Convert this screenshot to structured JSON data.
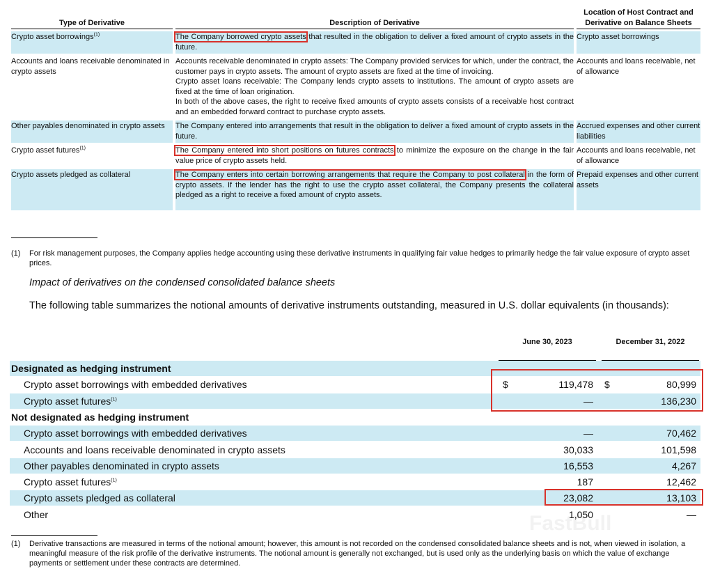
{
  "derivatives_table": {
    "headers": [
      "Type of Derivative",
      "Description of Derivative",
      "Location of Host Contract and Derivative on Balance Sheets"
    ],
    "rows": [
      {
        "type": "Crypto asset borrowings",
        "type_note": "(1)",
        "description": [
          "The Company borrowed crypto assets",
          " that resulted in the obligation to deliver a fixed amount of crypto assets in the future."
        ],
        "location": "Crypto asset borrowings"
      },
      {
        "type": "Accounts and loans receivable denominated in crypto assets",
        "description": [
          "Accounts receivable denominated in crypto assets: The Company provided services for which, under the contract, the customer pays in crypto assets. The amount of crypto assets are fixed at the time of invoicing.",
          "Crypto asset loans receivable: The Company lends crypto assets to institutions. The amount of crypto assets are fixed at the time of loan origination.",
          "In both of the above cases, the right to receive fixed amounts of crypto assets consists of a receivable host contract and an embedded forward contract to purchase crypto assets."
        ],
        "location": "Accounts and loans receivable, net of allowance"
      },
      {
        "type": "Other payables denominated in crypto assets",
        "description": [
          "The Company entered into arrangements that result in the obligation to deliver a fixed amount of crypto assets in the future."
        ],
        "location": "Accrued expenses and other current liabilities"
      },
      {
        "type": "Crypto asset futures",
        "type_note": "(1)",
        "description": [
          "The Company entered into short positions on futures contracts",
          " to minimize the exposure on the change in the fair value price of crypto assets held."
        ],
        "location": "Accounts and loans receivable, net of allowance"
      },
      {
        "type": "Crypto assets pledged as collateral",
        "description": [
          "The Company enters into certain borrowing arrangements that require the Company to post collateral",
          " in the form of crypto assets. If the lender has the right to use the crypto asset collateral, the Company presents the collateral pledged as a right to receive a fixed amount of crypto assets."
        ],
        "location": "Prepaid expenses and other current assets"
      }
    ]
  },
  "footnote_1": {
    "marker": "(1)",
    "text": "For risk management purposes, the Company applies hedge accounting using these derivative instruments in qualifying fair value hedges to primarily hedge the fair value exposure of crypto asset prices."
  },
  "heading": "Impact of derivatives on the condensed consolidated balance sheets",
  "intro": "The following table summarizes the notional amounts of derivative instruments outstanding, measured in U.S. dollar equivalents (in thousands):",
  "notional_table": {
    "columns": [
      "June 30, 2023",
      "December 31, 2022"
    ],
    "sections": [
      {
        "title": "Designated as hedging instrument",
        "rows": [
          {
            "label": "Crypto asset borrowings with embedded derivatives",
            "currency": [
              "$",
              "$"
            ],
            "values": [
              "119,478",
              "80,999"
            ]
          },
          {
            "label": "Crypto asset futures",
            "note": "(1)",
            "values": [
              "—",
              "136,230"
            ]
          }
        ]
      },
      {
        "title": "Not designated as hedging instrument",
        "rows": [
          {
            "label": "Crypto asset borrowings with embedded derivatives",
            "values": [
              "—",
              "70,462"
            ]
          },
          {
            "label": "Accounts and loans receivable denominated in crypto assets",
            "values": [
              "30,033",
              "101,598"
            ]
          },
          {
            "label": "Other payables denominated in crypto assets",
            "values": [
              "16,553",
              "4,267"
            ]
          },
          {
            "label": "Crypto asset futures",
            "note": "(1)",
            "values": [
              "187",
              "12,462"
            ]
          },
          {
            "label": "Crypto assets pledged as collateral",
            "values": [
              "23,082",
              "13,103"
            ]
          },
          {
            "label": "Other",
            "values": [
              "1,050",
              "—"
            ]
          }
        ]
      }
    ]
  },
  "footnote_2": {
    "marker": "(1)",
    "text": "Derivative transactions are measured in terms of the notional amount; however, this amount is not recorded on the condensed consolidated balance sheets and is not, when viewed in isolation, a meaningful measure of the risk profile of the derivative instruments. The notional amount is generally not exchanged, but is used only as the underlying basis on which the value of exchange payments or settlement under these contracts are determined."
  },
  "watermark": "FastBull"
}
